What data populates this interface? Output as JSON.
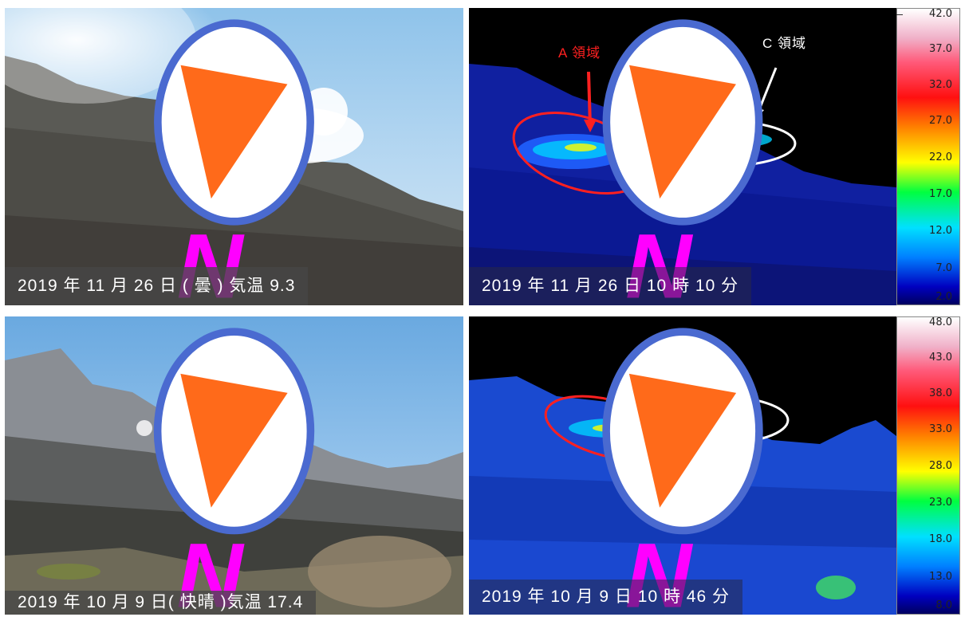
{
  "panels": {
    "top_left": {
      "caption": "2019 年 11 月 26 日 ( 曇 ) 気温 9.3"
    },
    "top_right": {
      "caption": "2019 年 11 月 26 日 10 時 10 分",
      "label_a": "A 領域",
      "label_c": "C 領域"
    },
    "bottom_left": {
      "caption": "2019 年 10 月 9 日( 快晴 )気温 17.4"
    },
    "bottom_right": {
      "caption": "2019 年 10 月 9 日 10 時 46 分"
    }
  },
  "compass": {
    "letter": "N",
    "color": "#ff00ff"
  },
  "scales": {
    "top": [
      "42.0",
      "37.0",
      "32.0",
      "27.0",
      "22.0",
      "17.0",
      "12.0",
      "7.0",
      "2.0"
    ],
    "bottom": [
      "48.0",
      "43.0",
      "38.0",
      "33.0",
      "28.0",
      "23.0",
      "18.0",
      "13.0",
      "8.0"
    ]
  },
  "colors": {
    "region_a": "#ff2020",
    "region_c": "#ffffff"
  }
}
